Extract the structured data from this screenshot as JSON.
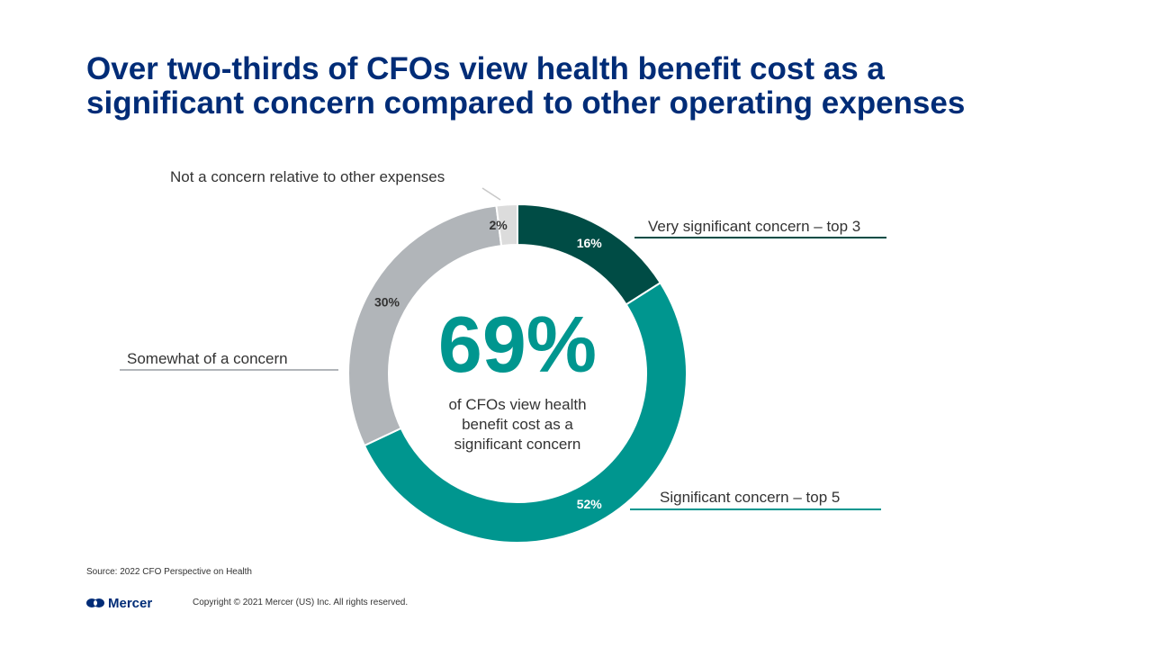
{
  "slide": {
    "title_line1": "Over two-thirds of CFOs view health benefit cost as a",
    "title_line2": "significant concern compared to other operating expenses"
  },
  "colors": {
    "title": "#002c77",
    "very_significant": "#004c45",
    "significant": "#00968f",
    "somewhat": "#b1b5b9",
    "not_a_concern": "#dcdcdc"
  },
  "chart_data": {
    "type": "pie",
    "variant": "donut",
    "categories": [
      "Very significant concern – top 3",
      "Significant concern – top 5",
      "Somewhat of a concern",
      "Not a concern relative to other expenses"
    ],
    "values": [
      16,
      52,
      30,
      2
    ],
    "value_labels": [
      "16%",
      "52%",
      "30%",
      "2%"
    ],
    "center": {
      "headline": "69%",
      "caption_lines": [
        "of CFOs view health",
        "benefit cost as a",
        "significant concern"
      ]
    }
  },
  "footer": {
    "source": "Source: 2022 CFO Perspective on Health",
    "brand": "Mercer",
    "copyright": "Copyright © 2021 Mercer (US) Inc. All rights reserved."
  }
}
